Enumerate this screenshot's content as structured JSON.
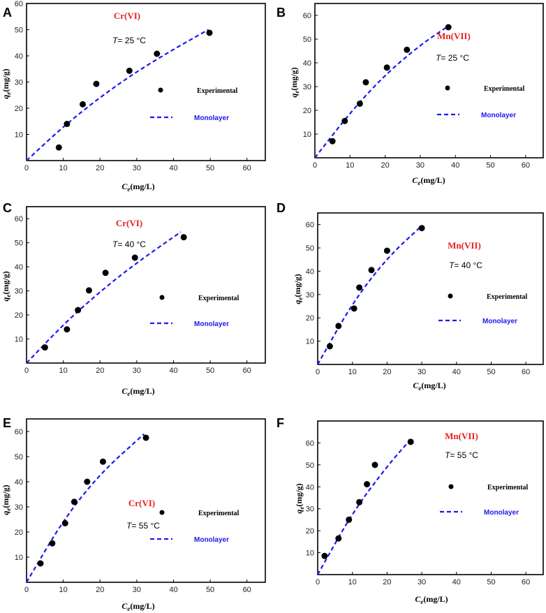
{
  "figure": {
    "xlabel_sym": "C",
    "xlabel_sub": "e",
    "xlabel_unit": "(mg/L)",
    "ylabel_sym": "q",
    "ylabel_sub": "e",
    "ylabel_unit": "(mg/g)",
    "legend_experimental": "Experimental",
    "legend_monolayer": "Monolayer",
    "colors": {
      "fit": "#1a1aee",
      "ion": "#e82020",
      "points": "#000000"
    }
  },
  "chart_data": [
    {
      "panel": "A",
      "type": "scatter",
      "ion": "Cr(VI)",
      "temp": "T = 25 °C",
      "xlim": [
        0,
        65
      ],
      "ylim": [
        0,
        60
      ],
      "xticks": [
        "0",
        "10",
        "20",
        "30",
        "40",
        "50",
        "60"
      ],
      "yticks": [
        "10",
        "20",
        "30",
        "40",
        "50",
        "60"
      ],
      "xlabel": "Ce(mg/L)",
      "ylabel": "qe(mg/g)",
      "series": [
        {
          "name": "Experimental",
          "x": [
            8.8,
            11,
            15.3,
            19,
            28,
            35.5,
            49.8
          ],
          "y": [
            5,
            14,
            21.5,
            29.3,
            34.3,
            40.8,
            48.8
          ]
        },
        {
          "name": "Monolayer",
          "x": [
            0,
            10,
            20,
            30,
            40,
            49.5
          ],
          "y": [
            0,
            13,
            24.2,
            34,
            42.5,
            50
          ]
        }
      ]
    },
    {
      "panel": "B",
      "type": "scatter",
      "ion": "Mn(VII)",
      "temp": "T = 25 °C",
      "xlim": [
        0,
        65
      ],
      "ylim": [
        0,
        65
      ],
      "xticks": [
        "0",
        "10",
        "20",
        "30",
        "40",
        "50",
        "60"
      ],
      "yticks": [
        "10",
        "20",
        "30",
        "40",
        "50",
        "60"
      ],
      "xlabel": "Ce(mg/L)",
      "ylabel": "qe(mg/g)",
      "series": [
        {
          "name": "Experimental",
          "x": [
            5,
            8.5,
            12.8,
            14.5,
            20.5,
            26.2,
            38
          ],
          "y": [
            7,
            15.5,
            22.8,
            31.8,
            38,
            45.5,
            55
          ]
        },
        {
          "name": "Monolayer",
          "x": [
            0,
            10,
            20,
            30,
            37.5
          ],
          "y": [
            0,
            19,
            35,
            47.5,
            55
          ]
        }
      ]
    },
    {
      "panel": "C",
      "type": "scatter",
      "ion": "Cr(VI)",
      "temp": "T = 40 °C",
      "xlim": [
        0,
        65
      ],
      "ylim": [
        0,
        65
      ],
      "xticks": [
        "0",
        "10",
        "20",
        "30",
        "40",
        "50",
        "60"
      ],
      "yticks": [
        "10",
        "20",
        "30",
        "40",
        "50",
        "60"
      ],
      "xlabel": "Ce(mg/L)",
      "ylabel": "qe(mg/g)",
      "series": [
        {
          "name": "Experimental",
          "x": [
            5,
            11,
            14,
            17,
            21.5,
            29.5,
            42.8
          ],
          "y": [
            6.5,
            14,
            22,
            30.2,
            37.5,
            43.8,
            52.3
          ]
        },
        {
          "name": "Monolayer",
          "x": [
            0,
            10,
            20,
            30,
            42
          ],
          "y": [
            0,
            16,
            29.7,
            41.7,
            54.5
          ]
        }
      ]
    },
    {
      "panel": "D",
      "type": "scatter",
      "ion": "Mn(VII)",
      "temp": "T = 40 °C",
      "xlim": [
        0,
        65
      ],
      "ylim": [
        0,
        65
      ],
      "xticks": [
        "0",
        "10",
        "20",
        "30",
        "40",
        "50",
        "60"
      ],
      "yticks": [
        "10",
        "20",
        "30",
        "40",
        "50",
        "60"
      ],
      "xlabel": "Ce(mg/L)",
      "ylabel": "qe(mg/g)",
      "series": [
        {
          "name": "Experimental",
          "x": [
            3.5,
            6,
            10.5,
            12,
            15.5,
            20,
            30
          ],
          "y": [
            7.8,
            16.5,
            24,
            33,
            40.5,
            48.8,
            58.5
          ]
        },
        {
          "name": "Monolayer",
          "x": [
            0,
            10,
            20,
            30
          ],
          "y": [
            0,
            26.4,
            45.7,
            59.5
          ]
        }
      ]
    },
    {
      "panel": "E",
      "type": "scatter",
      "ion": "Cr(VI)",
      "temp": "T = 55 °C",
      "xlim": [
        0,
        65
      ],
      "ylim": [
        0,
        65
      ],
      "xticks": [
        "0",
        "10",
        "20",
        "30",
        "40",
        "50",
        "60"
      ],
      "yticks": [
        "10",
        "20",
        "30",
        "40",
        "50",
        "60"
      ],
      "xlabel": "Ce(mg/L)",
      "ylabel": "qe(mg/g)",
      "series": [
        {
          "name": "Experimental",
          "x": [
            3.8,
            7,
            10.5,
            13,
            16.5,
            20.8,
            32.5
          ],
          "y": [
            7.5,
            15.5,
            23.5,
            32,
            40,
            48,
            57.5
          ]
        },
        {
          "name": "Monolayer",
          "x": [
            0,
            10,
            20,
            32
          ],
          "y": [
            0,
            24.8,
            43.2,
            59
          ]
        }
      ]
    },
    {
      "panel": "F",
      "type": "scatter",
      "ion": "Mn(VII)",
      "temp": "T = 55 °C",
      "xlim": [
        0,
        65
      ],
      "ylim": [
        0,
        70
      ],
      "xticks": [
        "0",
        "10",
        "20",
        "30",
        "40",
        "50",
        "60"
      ],
      "yticks": [
        "10",
        "20",
        "30",
        "40",
        "50",
        "60"
      ],
      "xlabel": "Ce(mg/L)",
      "ylabel": "qe(mg/g)",
      "series": [
        {
          "name": "Experimental",
          "x": [
            2,
            6,
            9,
            12,
            14.2,
            16.5,
            26.8
          ],
          "y": [
            8.5,
            16.5,
            25,
            33,
            41.2,
            50,
            60.5
          ]
        },
        {
          "name": "Monolayer",
          "x": [
            0,
            10,
            20,
            27
          ],
          "y": [
            0,
            28.2,
            49.4,
            62
          ]
        }
      ]
    }
  ]
}
